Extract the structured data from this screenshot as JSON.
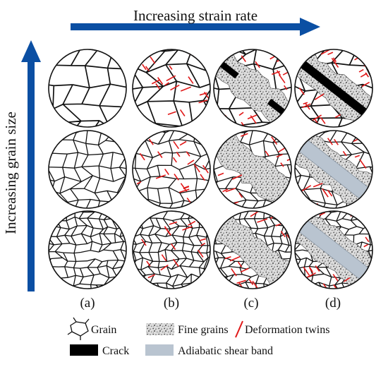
{
  "axes": {
    "x_title": "Increasing strain rate",
    "y_title": "Increasing grain size"
  },
  "columns": [
    "(a)",
    "(b)",
    "(c)",
    "(d)"
  ],
  "rows": [
    {
      "grain": "coarse"
    },
    {
      "grain": "medium"
    },
    {
      "grain": "fine"
    }
  ],
  "panels": [
    [
      {
        "twins": 0,
        "band": "none",
        "crack": false
      },
      {
        "twins": 22,
        "band": "none",
        "crack": false
      },
      {
        "twins": 14,
        "band": "fine",
        "crack": true
      },
      {
        "twins": 22,
        "band": "fine",
        "crack": true
      }
    ],
    [
      {
        "twins": 0,
        "band": "none",
        "crack": false
      },
      {
        "twins": 22,
        "band": "none",
        "crack": false
      },
      {
        "twins": 14,
        "band": "fine",
        "crack": false
      },
      {
        "twins": 14,
        "band": "asb",
        "crack": false
      }
    ],
    [
      {
        "twins": 0,
        "band": "none",
        "crack": false
      },
      {
        "twins": 18,
        "band": "none",
        "crack": false
      },
      {
        "twins": 16,
        "band": "fine",
        "crack": false
      },
      {
        "twins": 14,
        "band": "asb",
        "crack": false
      }
    ]
  ],
  "legend": {
    "grain": "Grain",
    "fine_grains": "Fine grains",
    "twins": "Deformation twins",
    "crack": "Crack",
    "asb": "Adiabatic shear band"
  },
  "colors": {
    "arrow": "#0b4fa3",
    "twin": "#e01818",
    "asb": "#b9c4d0",
    "crack": "#000000",
    "grain_line": "#111111"
  }
}
